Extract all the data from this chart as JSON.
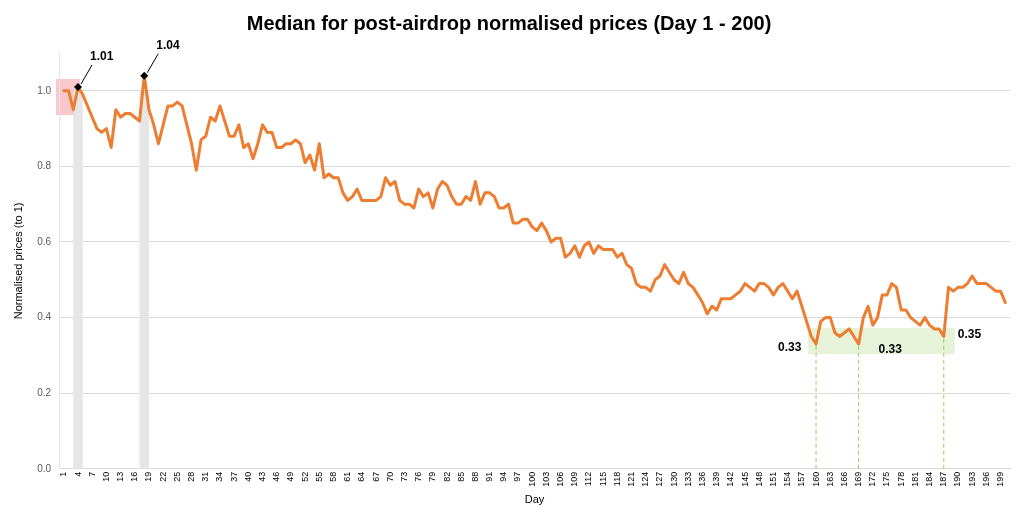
{
  "chart_data": {
    "type": "line",
    "title": "Median for post-airdrop normalised prices (Day 1 - 200)",
    "xlabel": "Day",
    "ylabel": "Normalised prices (to 1)",
    "x": [
      1,
      2,
      3,
      4,
      5,
      6,
      7,
      8,
      9,
      10,
      11,
      12,
      13,
      14,
      15,
      16,
      17,
      18,
      19,
      20,
      21,
      22,
      23,
      24,
      25,
      26,
      27,
      28,
      29,
      30,
      31,
      32,
      33,
      34,
      35,
      36,
      37,
      38,
      39,
      40,
      41,
      42,
      43,
      44,
      45,
      46,
      47,
      48,
      49,
      50,
      51,
      52,
      53,
      54,
      55,
      56,
      57,
      58,
      59,
      60,
      61,
      62,
      63,
      64,
      65,
      66,
      67,
      68,
      69,
      70,
      71,
      72,
      73,
      74,
      75,
      76,
      77,
      78,
      79,
      80,
      81,
      82,
      83,
      84,
      85,
      86,
      87,
      88,
      89,
      90,
      91,
      92,
      93,
      94,
      95,
      96,
      97,
      98,
      99,
      100,
      101,
      102,
      103,
      104,
      105,
      106,
      107,
      108,
      109,
      110,
      111,
      112,
      113,
      114,
      115,
      116,
      117,
      118,
      119,
      120,
      121,
      122,
      123,
      124,
      125,
      126,
      127,
      128,
      129,
      130,
      131,
      132,
      133,
      134,
      135,
      136,
      137,
      138,
      139,
      140,
      141,
      142,
      143,
      144,
      145,
      146,
      147,
      148,
      149,
      150,
      151,
      152,
      153,
      154,
      155,
      156,
      157,
      158,
      159,
      160,
      161,
      162,
      163,
      164,
      165,
      166,
      167,
      168,
      169,
      170,
      171,
      172,
      173,
      174,
      175,
      176,
      177,
      178,
      179,
      180,
      181,
      182,
      183,
      184,
      185,
      186,
      187,
      188,
      189,
      190,
      191,
      192,
      193,
      194,
      195,
      196,
      197,
      198,
      199,
      200
    ],
    "series": [
      {
        "color": "#ed7d31",
        "values": [
          1.0,
          1.0,
          0.95,
          1.01,
          0.99,
          0.96,
          0.93,
          0.9,
          0.89,
          0.9,
          0.85,
          0.95,
          0.93,
          0.94,
          0.94,
          0.93,
          0.92,
          1.04,
          0.95,
          0.91,
          0.86,
          0.91,
          0.96,
          0.96,
          0.97,
          0.96,
          0.91,
          0.86,
          0.79,
          0.87,
          0.88,
          0.93,
          0.92,
          0.96,
          0.92,
          0.88,
          0.88,
          0.91,
          0.85,
          0.86,
          0.82,
          0.86,
          0.91,
          0.89,
          0.89,
          0.85,
          0.85,
          0.86,
          0.86,
          0.87,
          0.86,
          0.81,
          0.83,
          0.79,
          0.86,
          0.77,
          0.78,
          0.77,
          0.77,
          0.73,
          0.71,
          0.72,
          0.74,
          0.71,
          0.71,
          0.71,
          0.71,
          0.72,
          0.77,
          0.75,
          0.76,
          0.71,
          0.7,
          0.7,
          0.69,
          0.74,
          0.72,
          0.73,
          0.69,
          0.74,
          0.76,
          0.75,
          0.72,
          0.7,
          0.7,
          0.72,
          0.71,
          0.76,
          0.7,
          0.73,
          0.73,
          0.72,
          0.69,
          0.69,
          0.7,
          0.65,
          0.65,
          0.66,
          0.66,
          0.64,
          0.63,
          0.65,
          0.63,
          0.6,
          0.61,
          0.61,
          0.56,
          0.57,
          0.59,
          0.56,
          0.59,
          0.6,
          0.57,
          0.59,
          0.58,
          0.58,
          0.58,
          0.56,
          0.57,
          0.54,
          0.53,
          0.49,
          0.48,
          0.48,
          0.47,
          0.5,
          0.51,
          0.54,
          0.52,
          0.5,
          0.49,
          0.52,
          0.49,
          0.48,
          0.46,
          0.44,
          0.41,
          0.43,
          0.42,
          0.45,
          0.45,
          0.45,
          0.46,
          0.47,
          0.49,
          0.48,
          0.47,
          0.49,
          0.49,
          0.48,
          0.46,
          0.48,
          0.49,
          0.47,
          0.45,
          0.47,
          0.43,
          0.39,
          0.35,
          0.33,
          0.39,
          0.4,
          0.4,
          0.36,
          0.35,
          0.36,
          0.37,
          0.35,
          0.33,
          0.4,
          0.43,
          0.38,
          0.4,
          0.46,
          0.46,
          0.49,
          0.48,
          0.42,
          0.42,
          0.4,
          0.39,
          0.38,
          0.4,
          0.38,
          0.37,
          0.37,
          0.35,
          0.48,
          0.47,
          0.48,
          0.48,
          0.49,
          0.51,
          0.49,
          0.49,
          0.49,
          0.48,
          0.47,
          0.47,
          0.44
        ]
      }
    ],
    "xlim": [
      0,
      201
    ],
    "xticks": [
      1,
      4,
      7,
      10,
      13,
      16,
      19,
      22,
      25,
      28,
      31,
      34,
      37,
      40,
      43,
      46,
      49,
      52,
      55,
      58,
      61,
      64,
      67,
      70,
      73,
      76,
      79,
      82,
      85,
      88,
      91,
      94,
      97,
      100,
      103,
      106,
      109,
      112,
      115,
      118,
      121,
      124,
      127,
      130,
      133,
      136,
      139,
      142,
      145,
      148,
      151,
      154,
      157,
      160,
      163,
      166,
      169,
      172,
      175,
      178,
      181,
      184,
      187,
      190,
      193,
      196,
      199
    ],
    "ylim": [
      0,
      1.1
    ],
    "yticks": [
      {
        "value": 0,
        "label": "0.0"
      },
      {
        "value": 0.2,
        "label": "0.2"
      },
      {
        "value": 0.4,
        "label": "0.4"
      },
      {
        "value": 0.6,
        "label": "0.6"
      },
      {
        "value": 0.8,
        "label": "0.8"
      },
      {
        "value": 1,
        "label": "1.0"
      }
    ],
    "grid": "y",
    "legend": false,
    "marker": "none",
    "line_style": "solid",
    "bands": [
      {
        "axis": "x",
        "from": 3,
        "to": 5,
        "color": "#e7e6e6"
      },
      {
        "axis": "x",
        "from": 17,
        "to": 19,
        "color": "#e7e6e6"
      }
    ],
    "ref_lines": [
      {
        "axis": "x",
        "value": 160,
        "color": "#92d050",
        "line_style": "dashed"
      },
      {
        "axis": "x",
        "value": 169,
        "color": "#92d050",
        "line_style": "dashed"
      },
      {
        "axis": "x",
        "value": 187,
        "color": "#92d050",
        "line_style": "dashed"
      }
    ],
    "annotations": [
      {
        "text": "1.01",
        "x": 4,
        "y": 1.01
      },
      {
        "text": "1.04",
        "x": 18,
        "y": 1.04
      },
      {
        "text": "0.33",
        "x": 160,
        "y": 0.33
      },
      {
        "text": "0.33",
        "x": 169,
        "y": 0.33
      },
      {
        "text": "0.35",
        "x": 187,
        "y": 0.35
      }
    ]
  }
}
